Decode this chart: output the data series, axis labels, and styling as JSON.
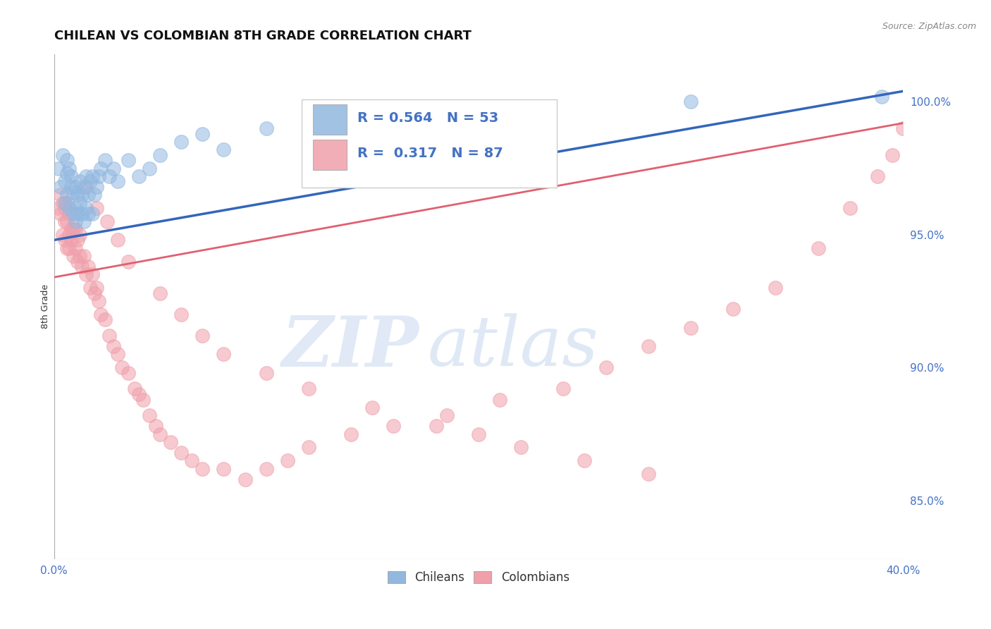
{
  "title": "CHILEAN VS COLOMBIAN 8TH GRADE CORRELATION CHART",
  "source_text": "Source: ZipAtlas.com",
  "ylabel": "8th Grade",
  "xlim": [
    0.0,
    0.4
  ],
  "ylim": [
    0.828,
    1.018
  ],
  "yticks": [
    0.85,
    0.9,
    0.95,
    1.0
  ],
  "ytick_labels": [
    "85.0%",
    "90.0%",
    "95.0%",
    "100.0%"
  ],
  "xticks": [
    0.0,
    0.4
  ],
  "xtick_labels": [
    "0.0%",
    "40.0%"
  ],
  "legend_r_blue": "R = 0.564",
  "legend_n_blue": "N = 53",
  "legend_r_pink": "R =  0.317",
  "legend_n_pink": "N = 87",
  "blue_color": "#92B8E0",
  "pink_color": "#F0A0AA",
  "blue_line_color": "#3366BB",
  "pink_line_color": "#E06070",
  "watermark_zip": "ZIP",
  "watermark_atlas": "atlas",
  "grid_color": "#CCCCCC",
  "background_color": "#FFFFFF",
  "title_fontsize": 13,
  "axis_label_fontsize": 9,
  "tick_fontsize": 11,
  "legend_fontsize": 14,
  "blue_scatter_x": [
    0.002,
    0.003,
    0.004,
    0.005,
    0.005,
    0.006,
    0.006,
    0.006,
    0.007,
    0.007,
    0.008,
    0.008,
    0.009,
    0.009,
    0.01,
    0.01,
    0.01,
    0.011,
    0.011,
    0.012,
    0.012,
    0.013,
    0.013,
    0.014,
    0.014,
    0.015,
    0.015,
    0.016,
    0.016,
    0.017,
    0.018,
    0.018,
    0.019,
    0.02,
    0.021,
    0.022,
    0.024,
    0.026,
    0.028,
    0.03,
    0.035,
    0.04,
    0.045,
    0.05,
    0.06,
    0.07,
    0.08,
    0.1,
    0.13,
    0.17,
    0.22,
    0.3,
    0.39
  ],
  "blue_scatter_y": [
    0.975,
    0.968,
    0.98,
    0.97,
    0.962,
    0.973,
    0.965,
    0.978,
    0.96,
    0.975,
    0.968,
    0.972,
    0.958,
    0.966,
    0.96,
    0.968,
    0.955,
    0.965,
    0.958,
    0.962,
    0.97,
    0.958,
    0.965,
    0.955,
    0.968,
    0.96,
    0.972,
    0.958,
    0.965,
    0.97,
    0.958,
    0.972,
    0.965,
    0.968,
    0.972,
    0.975,
    0.978,
    0.972,
    0.975,
    0.97,
    0.978,
    0.972,
    0.975,
    0.98,
    0.985,
    0.988,
    0.982,
    0.99,
    0.992,
    0.995,
    0.998,
    1.0,
    1.002
  ],
  "pink_scatter_x": [
    0.002,
    0.003,
    0.003,
    0.004,
    0.004,
    0.005,
    0.005,
    0.005,
    0.006,
    0.006,
    0.006,
    0.007,
    0.007,
    0.007,
    0.008,
    0.008,
    0.009,
    0.009,
    0.01,
    0.01,
    0.011,
    0.011,
    0.012,
    0.012,
    0.013,
    0.014,
    0.015,
    0.016,
    0.017,
    0.018,
    0.019,
    0.02,
    0.021,
    0.022,
    0.024,
    0.026,
    0.028,
    0.03,
    0.032,
    0.035,
    0.038,
    0.04,
    0.042,
    0.045,
    0.048,
    0.05,
    0.055,
    0.06,
    0.065,
    0.07,
    0.08,
    0.09,
    0.1,
    0.11,
    0.12,
    0.14,
    0.16,
    0.185,
    0.21,
    0.24,
    0.26,
    0.28,
    0.3,
    0.32,
    0.34,
    0.36,
    0.375,
    0.388,
    0.395,
    0.4,
    0.015,
    0.02,
    0.025,
    0.03,
    0.035,
    0.05,
    0.06,
    0.07,
    0.08,
    0.1,
    0.12,
    0.15,
    0.18,
    0.2,
    0.22,
    0.25,
    0.28
  ],
  "pink_scatter_y": [
    0.96,
    0.958,
    0.965,
    0.95,
    0.962,
    0.955,
    0.948,
    0.96,
    0.945,
    0.955,
    0.962,
    0.95,
    0.958,
    0.945,
    0.952,
    0.948,
    0.942,
    0.952,
    0.945,
    0.952,
    0.94,
    0.948,
    0.942,
    0.95,
    0.938,
    0.942,
    0.935,
    0.938,
    0.93,
    0.935,
    0.928,
    0.93,
    0.925,
    0.92,
    0.918,
    0.912,
    0.908,
    0.905,
    0.9,
    0.898,
    0.892,
    0.89,
    0.888,
    0.882,
    0.878,
    0.875,
    0.872,
    0.868,
    0.865,
    0.862,
    0.862,
    0.858,
    0.862,
    0.865,
    0.87,
    0.875,
    0.878,
    0.882,
    0.888,
    0.892,
    0.9,
    0.908,
    0.915,
    0.922,
    0.93,
    0.945,
    0.96,
    0.972,
    0.98,
    0.99,
    0.968,
    0.96,
    0.955,
    0.948,
    0.94,
    0.928,
    0.92,
    0.912,
    0.905,
    0.898,
    0.892,
    0.885,
    0.878,
    0.875,
    0.87,
    0.865,
    0.86
  ],
  "blue_trendline_x": [
    0.0,
    0.4
  ],
  "blue_trendline_y": [
    0.948,
    1.004
  ],
  "pink_trendline_x": [
    0.0,
    0.4
  ],
  "pink_trendline_y": [
    0.934,
    0.992
  ]
}
